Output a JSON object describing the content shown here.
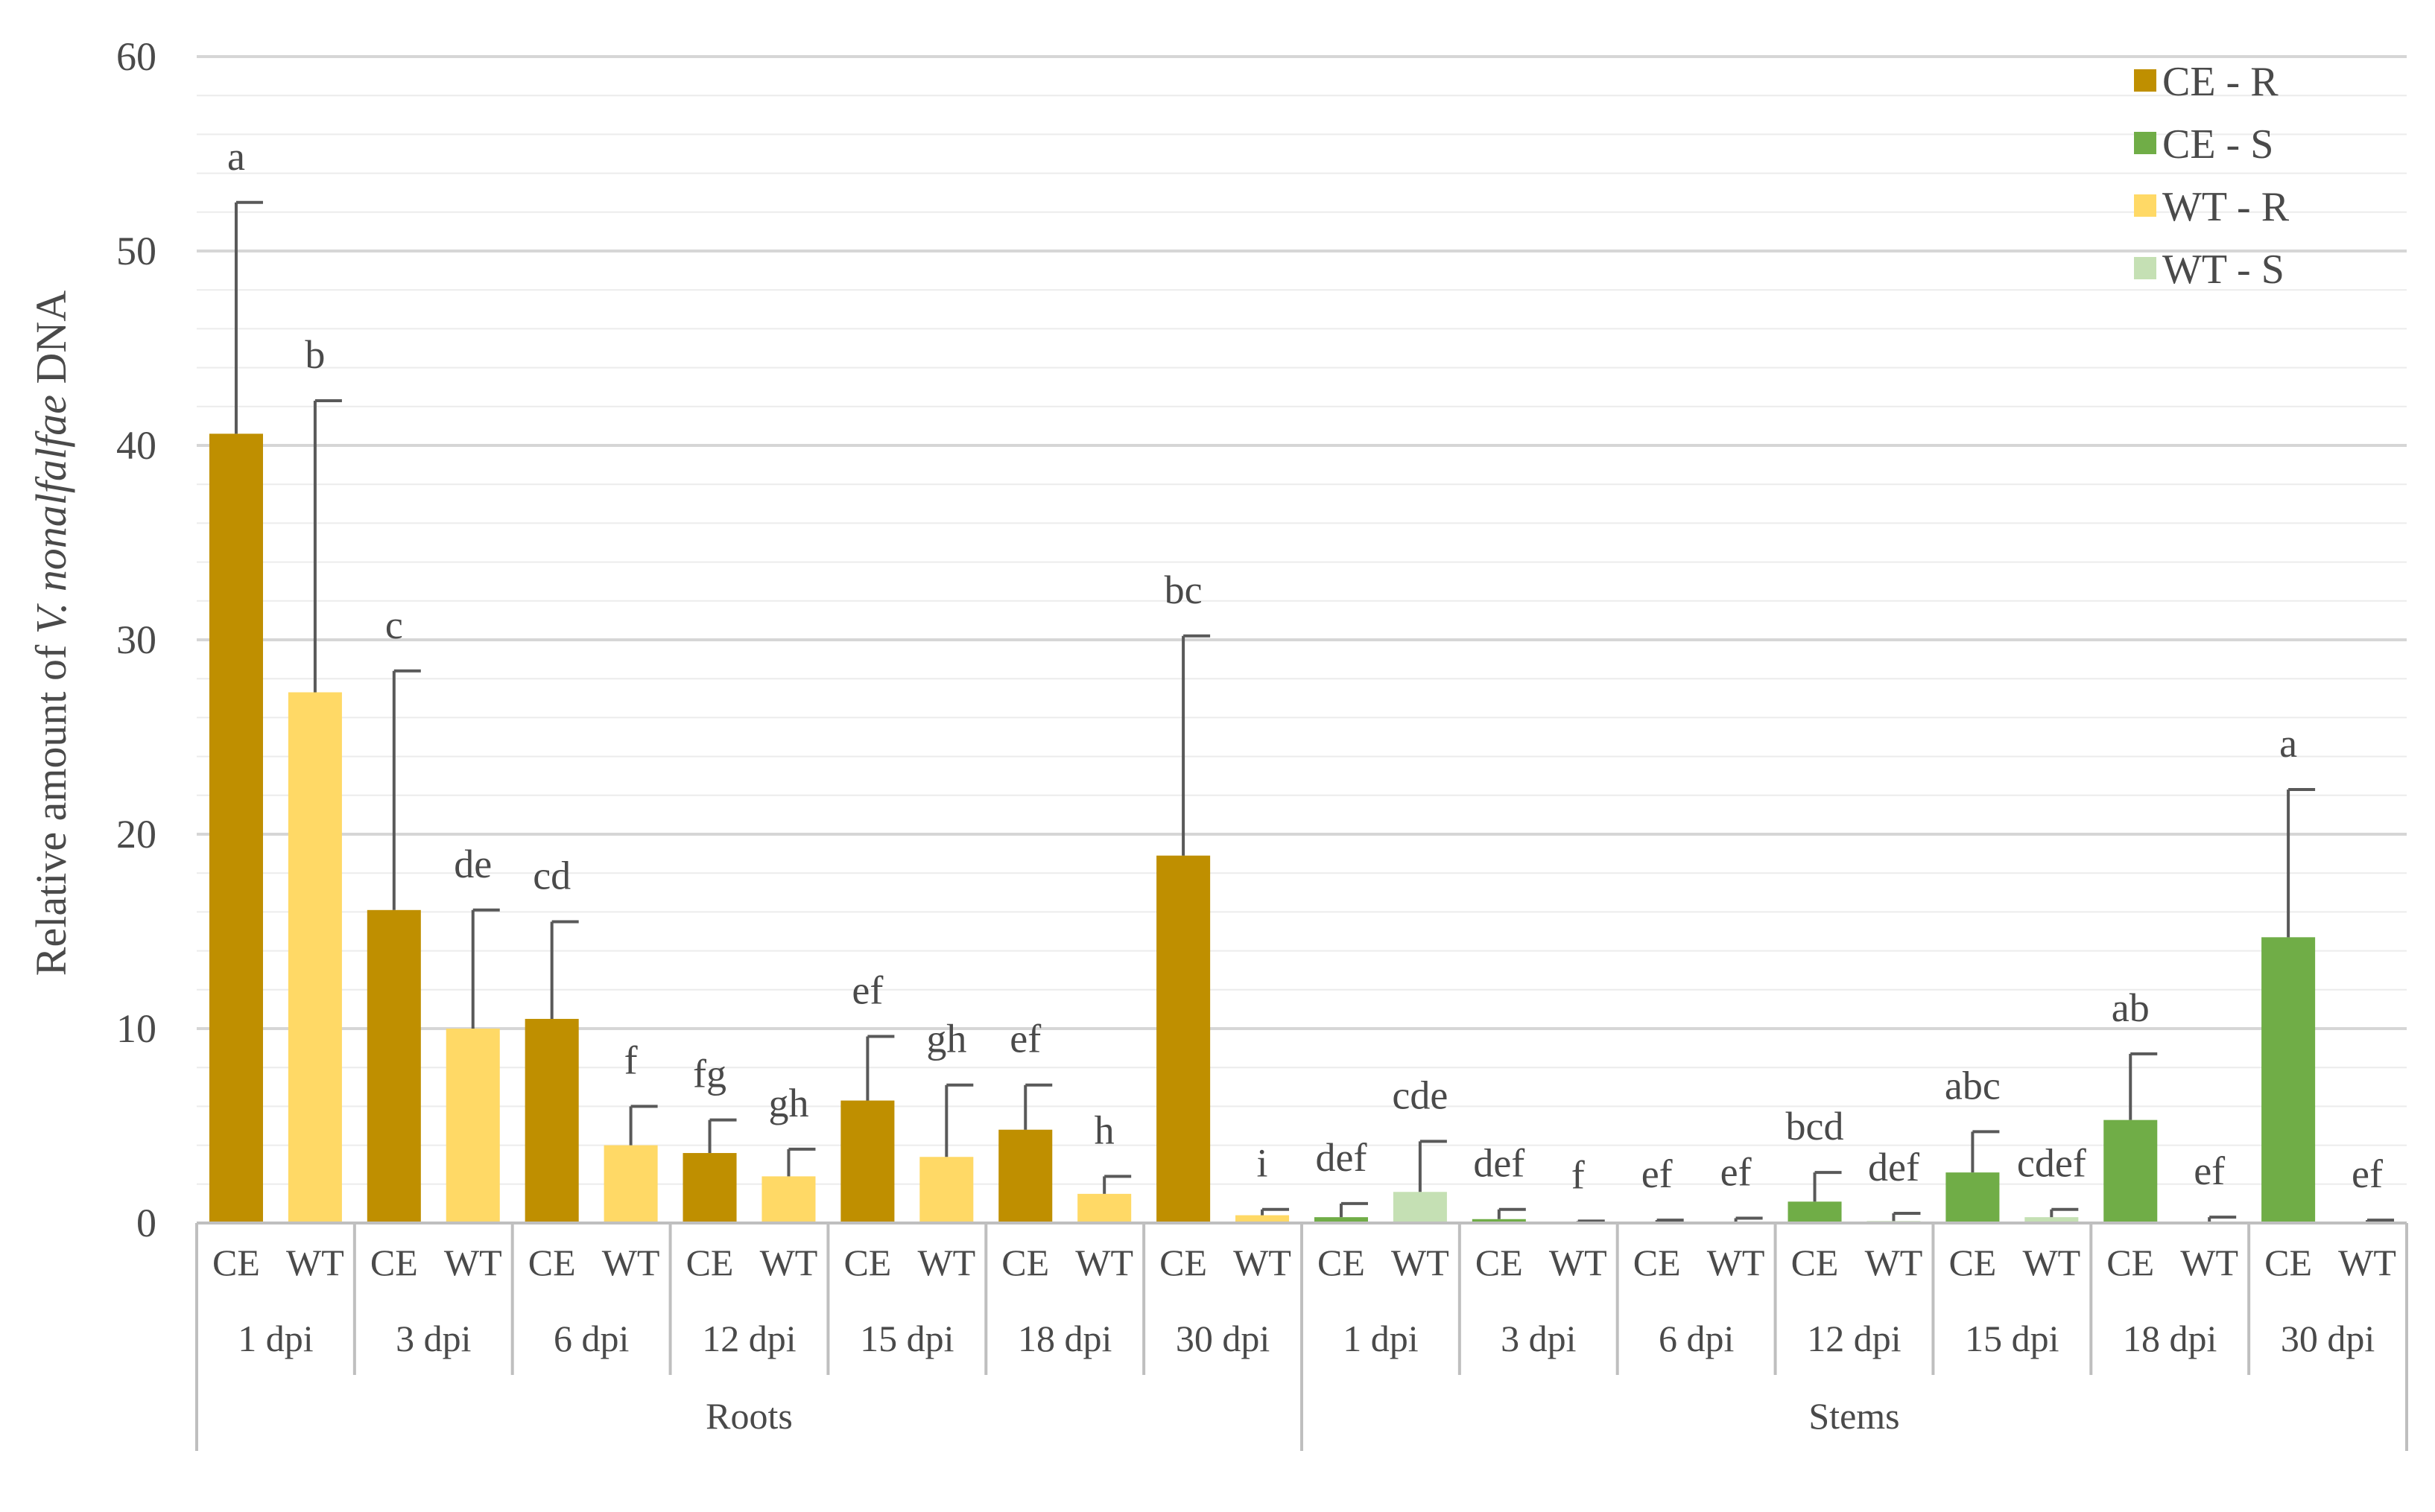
{
  "chart_data": {
    "type": "bar",
    "ylabel": {
      "prefix": "Relative amount of ",
      "italic": "V. nonalfalfae",
      "suffix": " DNA"
    },
    "ylim": [
      0,
      60
    ],
    "yticks": [
      0,
      10,
      20,
      30,
      40,
      50,
      60
    ],
    "grid": true,
    "legend": {
      "position": "top-right",
      "entries": [
        {
          "label": "CE - R",
          "color": "#BF8F00"
        },
        {
          "label": "CE - S",
          "color": "#70AD47"
        },
        {
          "label": "WT - R",
          "color": "#FFD966"
        },
        {
          "label": "WT - S",
          "color": "#C5E0B4"
        }
      ]
    },
    "sections": [
      {
        "name": "Roots",
        "groups": [
          {
            "name": "1 dpi",
            "bars": [
              {
                "label": "CE",
                "series": "CE - R",
                "value": 40.6,
                "err": 11.9,
                "sig": "a"
              },
              {
                "label": "WT",
                "series": "WT - R",
                "value": 27.3,
                "err": 15.0,
                "sig": "b"
              }
            ]
          },
          {
            "name": "3 dpi",
            "bars": [
              {
                "label": "CE",
                "series": "CE - R",
                "value": 16.1,
                "err": 12.3,
                "sig": "c"
              },
              {
                "label": "WT",
                "series": "WT - R",
                "value": 10.0,
                "err": 6.1,
                "sig": "de"
              }
            ]
          },
          {
            "name": "6 dpi",
            "bars": [
              {
                "label": "CE",
                "series": "CE - R",
                "value": 10.5,
                "err": 5.0,
                "sig": "cd"
              },
              {
                "label": "WT",
                "series": "WT - R",
                "value": 4.0,
                "err": 2.0,
                "sig": "f"
              }
            ]
          },
          {
            "name": "12 dpi",
            "bars": [
              {
                "label": "CE",
                "series": "CE - R",
                "value": 3.6,
                "err": 1.7,
                "sig": "fg"
              },
              {
                "label": "WT",
                "series": "WT - R",
                "value": 2.4,
                "err": 1.4,
                "sig": "gh"
              }
            ]
          },
          {
            "name": "15 dpi",
            "bars": [
              {
                "label": "CE",
                "series": "CE - R",
                "value": 6.3,
                "err": 3.3,
                "sig": "ef"
              },
              {
                "label": "WT",
                "series": "WT - R",
                "value": 3.4,
                "err": 3.7,
                "sig": "gh"
              }
            ]
          },
          {
            "name": "18 dpi",
            "bars": [
              {
                "label": "CE",
                "series": "CE - R",
                "value": 4.8,
                "err": 2.3,
                "sig": "ef"
              },
              {
                "label": "WT",
                "series": "WT - R",
                "value": 1.5,
                "err": 0.9,
                "sig": "h"
              }
            ]
          },
          {
            "name": "30 dpi",
            "bars": [
              {
                "label": "CE",
                "series": "CE - R",
                "value": 18.9,
                "err": 11.3,
                "sig": "bc"
              },
              {
                "label": "WT",
                "series": "WT - R",
                "value": 0.4,
                "err": 0.3,
                "sig": "i"
              }
            ]
          }
        ]
      },
      {
        "name": "Stems",
        "groups": [
          {
            "name": "1 dpi",
            "bars": [
              {
                "label": "CE",
                "series": "CE - S",
                "value": 0.3,
                "err": 0.7,
                "sig": "def"
              },
              {
                "label": "WT",
                "series": "WT - S",
                "value": 1.6,
                "err": 2.6,
                "sig": "cde"
              }
            ]
          },
          {
            "name": "3 dpi",
            "bars": [
              {
                "label": "CE",
                "series": "CE - S",
                "value": 0.2,
                "err": 0.5,
                "sig": "def"
              },
              {
                "label": "WT",
                "series": "WT - S",
                "value": 0.05,
                "err": 0.05,
                "sig": "f"
              }
            ]
          },
          {
            "name": "6 dpi",
            "bars": [
              {
                "label": "CE",
                "series": "CE - S",
                "value": 0.05,
                "err": 0.1,
                "sig": "ef"
              },
              {
                "label": "WT",
                "series": "WT - S",
                "value": 0.05,
                "err": 0.2,
                "sig": "ef"
              }
            ]
          },
          {
            "name": "12 dpi",
            "bars": [
              {
                "label": "CE",
                "series": "CE - S",
                "value": 1.1,
                "err": 1.5,
                "sig": "bcd"
              },
              {
                "label": "WT",
                "series": "WT - S",
                "value": 0.1,
                "err": 0.4,
                "sig": "def"
              }
            ]
          },
          {
            "name": "15 dpi",
            "bars": [
              {
                "label": "CE",
                "series": "CE - S",
                "value": 2.6,
                "err": 2.1,
                "sig": "abc"
              },
              {
                "label": "WT",
                "series": "WT - S",
                "value": 0.3,
                "err": 0.4,
                "sig": "cdef"
              }
            ]
          },
          {
            "name": "18 dpi",
            "bars": [
              {
                "label": "CE",
                "series": "CE - S",
                "value": 5.3,
                "err": 3.4,
                "sig": "ab"
              },
              {
                "label": "WT",
                "series": "WT - S",
                "value": 0.05,
                "err": 0.25,
                "sig": "ef"
              }
            ]
          },
          {
            "name": "30 dpi",
            "bars": [
              {
                "label": "CE",
                "series": "CE - S",
                "value": 14.7,
                "err": 7.6,
                "sig": "a"
              },
              {
                "label": "WT",
                "series": "WT - S",
                "value": 0.05,
                "err": 0.1,
                "sig": "ef"
              }
            ]
          }
        ]
      }
    ]
  }
}
